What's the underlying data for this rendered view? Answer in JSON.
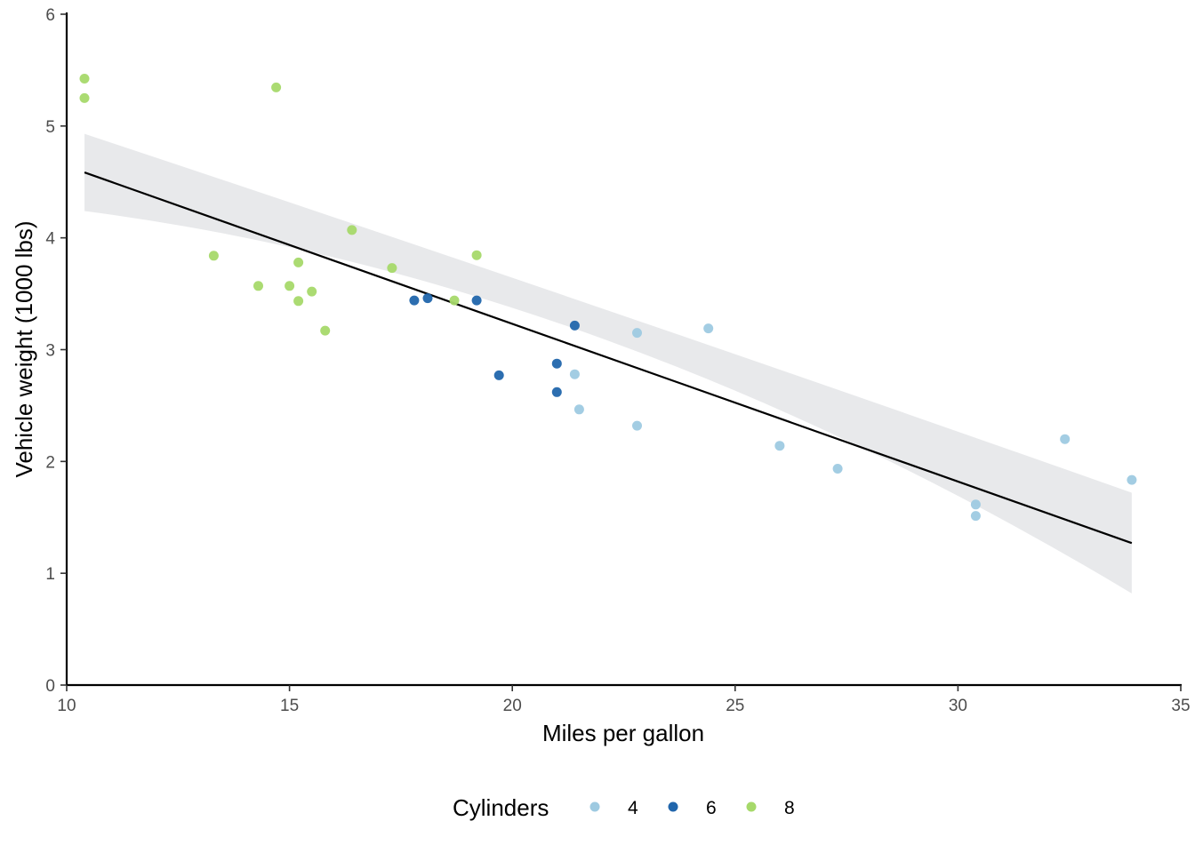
{
  "chart_data": {
    "type": "scatter",
    "xlabel": "Miles per gallon",
    "ylabel": "Vehicle weight (1000 lbs)",
    "xlim": [
      10,
      35
    ],
    "ylim": [
      0,
      6
    ],
    "xticks": [
      "10",
      "15",
      "20",
      "25",
      "30",
      "35"
    ],
    "yticks": [
      "0",
      "1",
      "2",
      "3",
      "4",
      "5",
      "6"
    ],
    "legend": {
      "title": "Cylinders",
      "position": "bottom",
      "entries": [
        {
          "label": "4",
          "color": "#9ecae1"
        },
        {
          "label": "6",
          "color": "#2166ac"
        },
        {
          "label": "8",
          "color": "#a6d96a"
        }
      ]
    },
    "series": [
      {
        "name": "4",
        "color": "#9ecae1",
        "points": [
          [
            22.8,
            2.32
          ],
          [
            24.4,
            3.19
          ],
          [
            22.8,
            3.15
          ],
          [
            32.4,
            2.2
          ],
          [
            30.4,
            1.615
          ],
          [
            33.9,
            1.835
          ],
          [
            21.5,
            2.465
          ],
          [
            27.3,
            1.935
          ],
          [
            26.0,
            2.14
          ],
          [
            30.4,
            1.513
          ],
          [
            21.4,
            2.78
          ]
        ]
      },
      {
        "name": "6",
        "color": "#2166ac",
        "points": [
          [
            21.0,
            2.62
          ],
          [
            21.0,
            2.875
          ],
          [
            21.4,
            3.215
          ],
          [
            18.1,
            3.46
          ],
          [
            19.2,
            3.44
          ],
          [
            17.8,
            3.44
          ],
          [
            19.7,
            2.77
          ]
        ]
      },
      {
        "name": "8",
        "color": "#a6d96a",
        "points": [
          [
            18.7,
            3.44
          ],
          [
            14.3,
            3.57
          ],
          [
            16.4,
            4.07
          ],
          [
            17.3,
            3.73
          ],
          [
            15.2,
            3.78
          ],
          [
            10.4,
            5.25
          ],
          [
            10.4,
            5.424
          ],
          [
            14.7,
            5.345
          ],
          [
            15.5,
            3.52
          ],
          [
            15.2,
            3.435
          ],
          [
            13.3,
            3.84
          ],
          [
            19.2,
            3.845
          ],
          [
            15.8,
            3.17
          ],
          [
            15.0,
            3.57
          ]
        ]
      }
    ],
    "fit_line": {
      "x": [
        10.4,
        33.9
      ],
      "y": [
        4.585,
        1.27
      ],
      "ci_lower": [
        4.24,
        0.82
      ],
      "ci_upper": [
        4.93,
        1.72
      ],
      "ci_mid_x": 20.09,
      "ci_mid_lower": 3.08,
      "ci_mid_upper": 3.35,
      "line_color": "#000000",
      "band_color": "#e8e9eb"
    }
  }
}
